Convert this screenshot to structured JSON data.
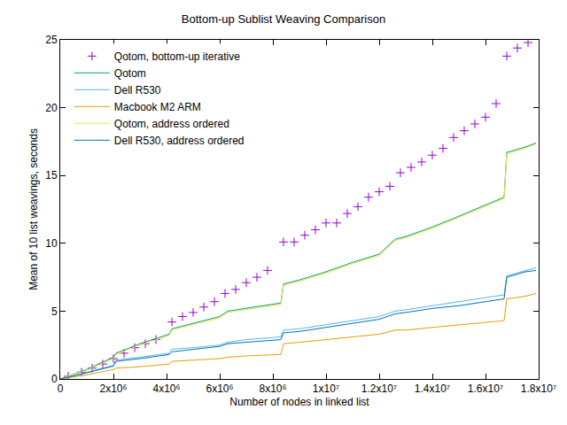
{
  "chart_data": {
    "type": "line",
    "title": "Bottom-up Sublist Weaving Comparison",
    "x_label": "Number of nodes in linked list",
    "y_label": "Mean of 10 list weavings, seconds",
    "xlim": [
      0,
      18000000
    ],
    "xticks": [
      0,
      {
        "value": 2000000,
        "label": "2x10⁶"
      },
      {
        "value": 4000000,
        "label": "4x10⁶"
      },
      {
        "value": 6000000,
        "label": "6x10⁶"
      },
      {
        "value": 8000000,
        "label": "8x10⁶"
      },
      {
        "value": 10000000,
        "label": "1x10⁷"
      },
      {
        "value": 12000000,
        "label": "1.2x10⁷"
      },
      {
        "value": 14000000,
        "label": "1.4x10⁷"
      },
      {
        "value": 16000000,
        "label": "1.6x10⁷"
      },
      {
        "value": 18000000,
        "label": "1.8x10⁷"
      }
    ],
    "ylim": [
      0,
      25
    ],
    "yticks": [
      0,
      5,
      10,
      15,
      20,
      25
    ],
    "grid": false,
    "legend": "upper left",
    "series": [
      {
        "name": "Qotom, bottom-up iterative",
        "type": "scatter",
        "marker": "plus",
        "color": "#9400d3",
        "x": [
          300000,
          800000,
          1200000,
          1600000,
          2000000,
          2400000,
          2800000,
          3200000,
          3600000,
          4200000,
          4600000,
          5000000,
          5400000,
          5800000,
          6200000,
          6600000,
          7000000,
          7400000,
          7800000,
          8400000,
          8800000,
          9200000,
          9600000,
          10000000,
          10400000,
          10800000,
          11200000,
          11600000,
          12000000,
          12400000,
          12800000,
          13200000,
          13600000,
          14000000,
          14400000,
          14800000,
          15200000,
          15600000,
          16000000,
          16400000,
          16800000,
          17200000,
          17600000
        ],
        "values": [
          0.2,
          0.5,
          0.8,
          1.1,
          1.5,
          1.9,
          2.3,
          2.6,
          2.9,
          4.2,
          4.6,
          4.9,
          5.3,
          5.7,
          6.3,
          6.6,
          7.1,
          7.5,
          8.0,
          10.1,
          10.1,
          10.6,
          11.0,
          11.5,
          11.5,
          12.2,
          12.7,
          13.4,
          13.8,
          14.2,
          15.2,
          15.6,
          16.0,
          16.5,
          17.0,
          17.8,
          18.3,
          18.8,
          19.3,
          20.3,
          23.8,
          24.4,
          24.8
        ]
      },
      {
        "name": "Qotom",
        "type": "line",
        "line_style": "solid",
        "color": "#009e73",
        "x": [
          0,
          1000000,
          2000000,
          2100000,
          3000000,
          4100000,
          4200000,
          5000000,
          6000000,
          6300000,
          7000000,
          8300000,
          8400000,
          9000000,
          10000000,
          11000000,
          12000000,
          12600000,
          13000000,
          14000000,
          15000000,
          16000000,
          16700000,
          16800000,
          17500000,
          17900000
        ],
        "values": [
          0,
          0.7,
          1.6,
          1.9,
          2.6,
          3.3,
          3.7,
          4.1,
          4.6,
          5.0,
          5.2,
          5.6,
          7.0,
          7.3,
          7.9,
          8.6,
          9.2,
          10.3,
          10.5,
          11.2,
          12.0,
          12.8,
          13.4,
          16.7,
          17.1,
          17.4
        ]
      },
      {
        "name": "Dell R530",
        "type": "line",
        "line_style": "solid",
        "color": "#56b4e9",
        "x": [
          0,
          1000000,
          2000000,
          2100000,
          3000000,
          4100000,
          4200000,
          5000000,
          6000000,
          6300000,
          7000000,
          8300000,
          8400000,
          9000000,
          10000000,
          11000000,
          12000000,
          12600000,
          13000000,
          14000000,
          15000000,
          16000000,
          16700000,
          16800000,
          17500000,
          17900000
        ],
        "values": [
          0,
          0.5,
          1.0,
          1.4,
          1.6,
          1.9,
          2.2,
          2.3,
          2.5,
          2.7,
          2.9,
          3.1,
          3.6,
          3.7,
          4.0,
          4.3,
          4.6,
          5.0,
          5.1,
          5.4,
          5.7,
          6.0,
          6.2,
          7.6,
          8.0,
          8.2
        ]
      },
      {
        "name": "Macbook M2 ARM",
        "type": "line",
        "line_style": "solid",
        "color": "#e69f00",
        "x": [
          0,
          1000000,
          2000000,
          2100000,
          3000000,
          4100000,
          4200000,
          5000000,
          6000000,
          6300000,
          7000000,
          8300000,
          8400000,
          9000000,
          10000000,
          11000000,
          12000000,
          12600000,
          13000000,
          14000000,
          15000000,
          16000000,
          16700000,
          16800000,
          17500000,
          17900000
        ],
        "values": [
          0,
          0.3,
          0.7,
          0.8,
          0.9,
          1.1,
          1.3,
          1.4,
          1.5,
          1.6,
          1.7,
          1.8,
          2.6,
          2.7,
          2.9,
          3.1,
          3.3,
          3.6,
          3.6,
          3.8,
          4.0,
          4.2,
          4.3,
          5.9,
          6.1,
          6.3
        ]
      },
      {
        "name": "Qotom, address ordered",
        "type": "line",
        "line_style": "solid",
        "color": "#f0e442",
        "x": [
          0,
          1000000,
          2000000,
          2100000,
          3000000,
          4100000,
          4200000,
          5000000,
          6000000,
          6300000,
          7000000,
          8300000,
          8400000,
          9000000,
          10000000,
          11000000,
          12000000,
          12600000,
          13000000,
          14000000,
          15000000,
          16000000,
          16700000,
          16800000,
          17500000,
          17900000
        ],
        "values": [
          0,
          0.65,
          1.5,
          1.8,
          2.5,
          3.2,
          3.6,
          4.0,
          4.5,
          4.9,
          5.1,
          5.5,
          6.9,
          7.2,
          7.8,
          8.5,
          9.1,
          10.2,
          10.4,
          11.1,
          11.9,
          12.7,
          13.3,
          16.6,
          17.0,
          17.3
        ]
      },
      {
        "name": "Dell R530, address ordered",
        "type": "line",
        "line_style": "solid",
        "color": "#0072b2",
        "x": [
          0,
          1000000,
          2000000,
          2100000,
          3000000,
          4100000,
          4200000,
          5000000,
          6000000,
          6300000,
          7000000,
          8300000,
          8400000,
          9000000,
          10000000,
          11000000,
          12000000,
          12600000,
          13000000,
          14000000,
          15000000,
          16000000,
          16700000,
          16800000,
          17500000,
          17900000
        ],
        "values": [
          0,
          0.45,
          0.95,
          1.3,
          1.5,
          1.8,
          2.0,
          2.2,
          2.4,
          2.6,
          2.7,
          2.9,
          3.4,
          3.5,
          3.8,
          4.1,
          4.4,
          4.8,
          4.9,
          5.2,
          5.4,
          5.7,
          5.9,
          7.5,
          7.9,
          8.0
        ]
      }
    ]
  }
}
